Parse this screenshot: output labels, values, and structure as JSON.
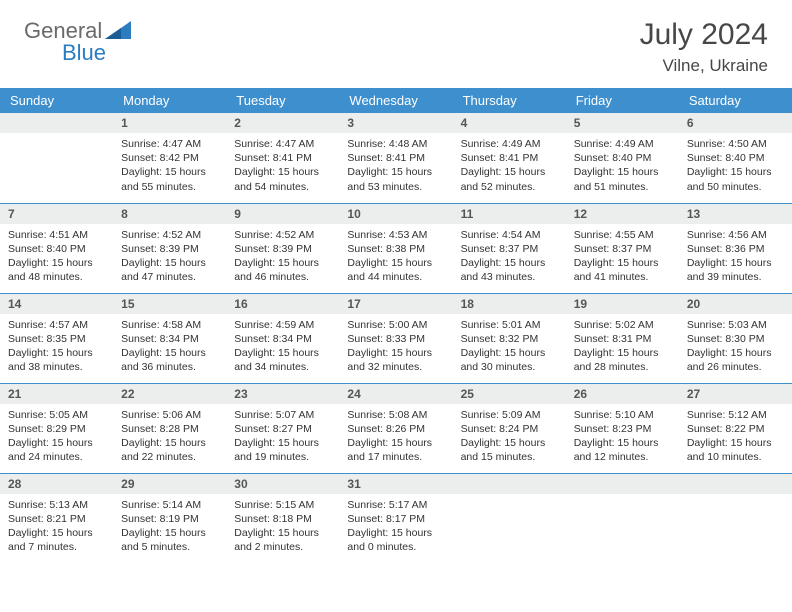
{
  "brand": {
    "part1": "General",
    "part2": "Blue"
  },
  "title": "July 2024",
  "location": "Vilne, Ukraine",
  "colors": {
    "header_bg": "#3e8fce",
    "header_text": "#ffffff",
    "daynum_bg": "#eceeee",
    "border": "#3e8fce",
    "logo_gray": "#6a6a6a",
    "logo_blue": "#2d7cc0"
  },
  "weekdays": [
    "Sunday",
    "Monday",
    "Tuesday",
    "Wednesday",
    "Thursday",
    "Friday",
    "Saturday"
  ],
  "weeks": [
    [
      {
        "n": "",
        "sunrise": "",
        "sunset": "",
        "daylight": ""
      },
      {
        "n": "1",
        "sunrise": "Sunrise: 4:47 AM",
        "sunset": "Sunset: 8:42 PM",
        "daylight": "Daylight: 15 hours and 55 minutes."
      },
      {
        "n": "2",
        "sunrise": "Sunrise: 4:47 AM",
        "sunset": "Sunset: 8:41 PM",
        "daylight": "Daylight: 15 hours and 54 minutes."
      },
      {
        "n": "3",
        "sunrise": "Sunrise: 4:48 AM",
        "sunset": "Sunset: 8:41 PM",
        "daylight": "Daylight: 15 hours and 53 minutes."
      },
      {
        "n": "4",
        "sunrise": "Sunrise: 4:49 AM",
        "sunset": "Sunset: 8:41 PM",
        "daylight": "Daylight: 15 hours and 52 minutes."
      },
      {
        "n": "5",
        "sunrise": "Sunrise: 4:49 AM",
        "sunset": "Sunset: 8:40 PM",
        "daylight": "Daylight: 15 hours and 51 minutes."
      },
      {
        "n": "6",
        "sunrise": "Sunrise: 4:50 AM",
        "sunset": "Sunset: 8:40 PM",
        "daylight": "Daylight: 15 hours and 50 minutes."
      }
    ],
    [
      {
        "n": "7",
        "sunrise": "Sunrise: 4:51 AM",
        "sunset": "Sunset: 8:40 PM",
        "daylight": "Daylight: 15 hours and 48 minutes."
      },
      {
        "n": "8",
        "sunrise": "Sunrise: 4:52 AM",
        "sunset": "Sunset: 8:39 PM",
        "daylight": "Daylight: 15 hours and 47 minutes."
      },
      {
        "n": "9",
        "sunrise": "Sunrise: 4:52 AM",
        "sunset": "Sunset: 8:39 PM",
        "daylight": "Daylight: 15 hours and 46 minutes."
      },
      {
        "n": "10",
        "sunrise": "Sunrise: 4:53 AM",
        "sunset": "Sunset: 8:38 PM",
        "daylight": "Daylight: 15 hours and 44 minutes."
      },
      {
        "n": "11",
        "sunrise": "Sunrise: 4:54 AM",
        "sunset": "Sunset: 8:37 PM",
        "daylight": "Daylight: 15 hours and 43 minutes."
      },
      {
        "n": "12",
        "sunrise": "Sunrise: 4:55 AM",
        "sunset": "Sunset: 8:37 PM",
        "daylight": "Daylight: 15 hours and 41 minutes."
      },
      {
        "n": "13",
        "sunrise": "Sunrise: 4:56 AM",
        "sunset": "Sunset: 8:36 PM",
        "daylight": "Daylight: 15 hours and 39 minutes."
      }
    ],
    [
      {
        "n": "14",
        "sunrise": "Sunrise: 4:57 AM",
        "sunset": "Sunset: 8:35 PM",
        "daylight": "Daylight: 15 hours and 38 minutes."
      },
      {
        "n": "15",
        "sunrise": "Sunrise: 4:58 AM",
        "sunset": "Sunset: 8:34 PM",
        "daylight": "Daylight: 15 hours and 36 minutes."
      },
      {
        "n": "16",
        "sunrise": "Sunrise: 4:59 AM",
        "sunset": "Sunset: 8:34 PM",
        "daylight": "Daylight: 15 hours and 34 minutes."
      },
      {
        "n": "17",
        "sunrise": "Sunrise: 5:00 AM",
        "sunset": "Sunset: 8:33 PM",
        "daylight": "Daylight: 15 hours and 32 minutes."
      },
      {
        "n": "18",
        "sunrise": "Sunrise: 5:01 AM",
        "sunset": "Sunset: 8:32 PM",
        "daylight": "Daylight: 15 hours and 30 minutes."
      },
      {
        "n": "19",
        "sunrise": "Sunrise: 5:02 AM",
        "sunset": "Sunset: 8:31 PM",
        "daylight": "Daylight: 15 hours and 28 minutes."
      },
      {
        "n": "20",
        "sunrise": "Sunrise: 5:03 AM",
        "sunset": "Sunset: 8:30 PM",
        "daylight": "Daylight: 15 hours and 26 minutes."
      }
    ],
    [
      {
        "n": "21",
        "sunrise": "Sunrise: 5:05 AM",
        "sunset": "Sunset: 8:29 PM",
        "daylight": "Daylight: 15 hours and 24 minutes."
      },
      {
        "n": "22",
        "sunrise": "Sunrise: 5:06 AM",
        "sunset": "Sunset: 8:28 PM",
        "daylight": "Daylight: 15 hours and 22 minutes."
      },
      {
        "n": "23",
        "sunrise": "Sunrise: 5:07 AM",
        "sunset": "Sunset: 8:27 PM",
        "daylight": "Daylight: 15 hours and 19 minutes."
      },
      {
        "n": "24",
        "sunrise": "Sunrise: 5:08 AM",
        "sunset": "Sunset: 8:26 PM",
        "daylight": "Daylight: 15 hours and 17 minutes."
      },
      {
        "n": "25",
        "sunrise": "Sunrise: 5:09 AM",
        "sunset": "Sunset: 8:24 PM",
        "daylight": "Daylight: 15 hours and 15 minutes."
      },
      {
        "n": "26",
        "sunrise": "Sunrise: 5:10 AM",
        "sunset": "Sunset: 8:23 PM",
        "daylight": "Daylight: 15 hours and 12 minutes."
      },
      {
        "n": "27",
        "sunrise": "Sunrise: 5:12 AM",
        "sunset": "Sunset: 8:22 PM",
        "daylight": "Daylight: 15 hours and 10 minutes."
      }
    ],
    [
      {
        "n": "28",
        "sunrise": "Sunrise: 5:13 AM",
        "sunset": "Sunset: 8:21 PM",
        "daylight": "Daylight: 15 hours and 7 minutes."
      },
      {
        "n": "29",
        "sunrise": "Sunrise: 5:14 AM",
        "sunset": "Sunset: 8:19 PM",
        "daylight": "Daylight: 15 hours and 5 minutes."
      },
      {
        "n": "30",
        "sunrise": "Sunrise: 5:15 AM",
        "sunset": "Sunset: 8:18 PM",
        "daylight": "Daylight: 15 hours and 2 minutes."
      },
      {
        "n": "31",
        "sunrise": "Sunrise: 5:17 AM",
        "sunset": "Sunset: 8:17 PM",
        "daylight": "Daylight: 15 hours and 0 minutes."
      },
      {
        "n": "",
        "sunrise": "",
        "sunset": "",
        "daylight": ""
      },
      {
        "n": "",
        "sunrise": "",
        "sunset": "",
        "daylight": ""
      },
      {
        "n": "",
        "sunrise": "",
        "sunset": "",
        "daylight": ""
      }
    ]
  ]
}
